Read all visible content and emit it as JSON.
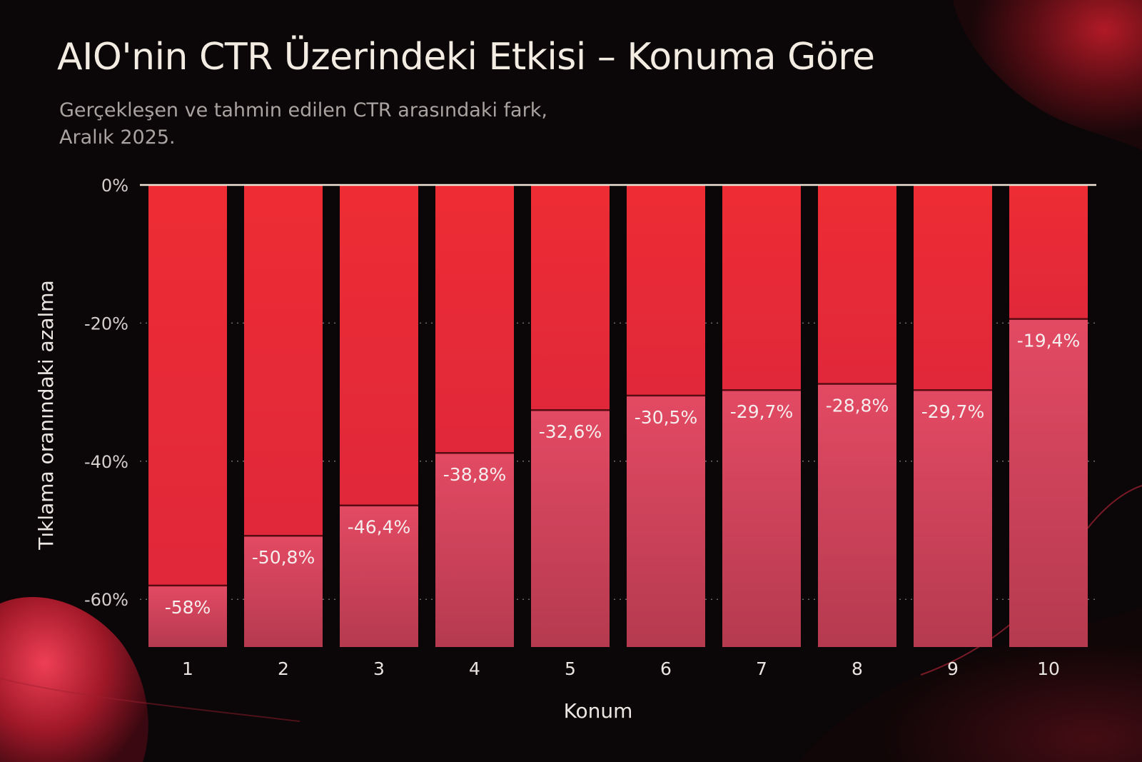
{
  "title": "AIO'nin CTR Üzerindeki Etkisi – Konuma Göre",
  "subtitle_line1": "Gerçekleşen ve tahmin edilen CTR arasındaki fark,",
  "subtitle_line2": "Aralık 2025.",
  "colors": {
    "background": "#0b0608",
    "bar_top": "#ee2c34",
    "bar_bottom": "#e34a63",
    "text": "#f2ece2"
  },
  "chart_data": {
    "type": "bar",
    "categories": [
      "1",
      "2",
      "3",
      "4",
      "5",
      "6",
      "7",
      "8",
      "9",
      "10"
    ],
    "values": [
      -58,
      -50.8,
      -46.4,
      -38.8,
      -32.6,
      -30.5,
      -29.7,
      -28.8,
      -29.7,
      -19.4
    ],
    "value_labels": [
      "-58%",
      "-50,8%",
      "-46,4%",
      "-38,8%",
      "-32,6%",
      "-30,5%",
      "-29,7%",
      "-28,8%",
      "-29,7%",
      "-19,4%"
    ],
    "xlabel": "Konum",
    "ylabel": "Tıklama oranındaki azalma",
    "yticks": [
      {
        "value": 0,
        "label": "0%"
      },
      {
        "value": -20,
        "label": "-20%"
      },
      {
        "value": -40,
        "label": "-40%"
      },
      {
        "value": -60,
        "label": "-60%"
      }
    ],
    "ylim": [
      -67,
      0
    ],
    "grid": "dotted horizontal"
  }
}
